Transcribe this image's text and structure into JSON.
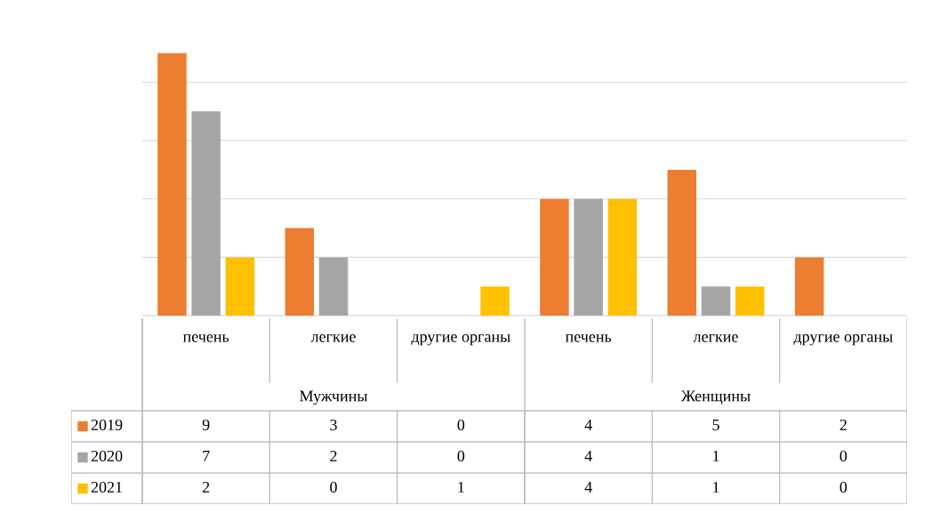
{
  "chart_data": {
    "type": "bar",
    "categories": [
      "печень",
      "легкие",
      "другие органы",
      "печень",
      "легкие",
      "другие органы"
    ],
    "annotations": [
      "Мужчины",
      "Женщины"
    ],
    "series": [
      {
        "name": "2019",
        "color": "#ed7d31",
        "values": [
          9,
          3,
          0,
          4,
          5,
          2
        ]
      },
      {
        "name": "2020",
        "color": "#a5a5a5",
        "values": [
          7,
          2,
          0,
          4,
          1,
          0
        ]
      },
      {
        "name": "2021",
        "color": "#ffc000",
        "values": [
          2,
          0,
          1,
          4,
          1,
          0
        ]
      }
    ],
    "data_labels": true,
    "grid": "y",
    "legend": "bottom",
    "tick_labels": false
  }
}
